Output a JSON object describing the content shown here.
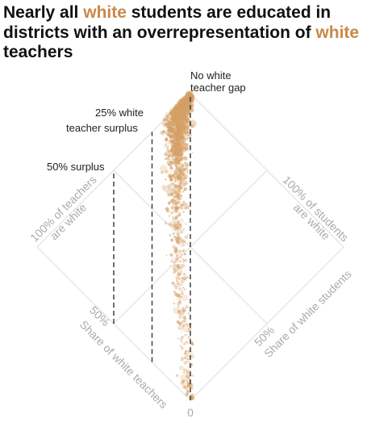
{
  "title": {
    "part1": "Nearly all ",
    "highlight1": "white",
    "part2": " students are educated in districts with an overrepresentation of ",
    "highlight2": "white",
    "part3": " teachers"
  },
  "colors": {
    "highlight": "#c8894a",
    "dots": "#d4a166",
    "grid": "#dddddd",
    "axis_text": "#aaaaaa",
    "annotation": "#222222"
  },
  "chart_data": {
    "type": "scatter",
    "layout": "diamond",
    "x_axis": {
      "label": "Share of white teachers",
      "range": [
        0,
        100
      ],
      "ticks": [
        "50%",
        "100% of teachers are white"
      ]
    },
    "y_axis": {
      "label": "Share of white students",
      "range": [
        0,
        100
      ],
      "ticks": [
        "50%",
        "100% of students are white"
      ]
    },
    "origin_label": "0",
    "grid": true,
    "reference_lines": [
      {
        "label": "No white teacher gap",
        "surplus_pct": 0
      },
      {
        "label": "25% white teacher surplus",
        "surplus_pct": 25
      },
      {
        "label": "50% surplus",
        "surplus_pct": 50
      }
    ],
    "point_count_approx": 2600
  }
}
